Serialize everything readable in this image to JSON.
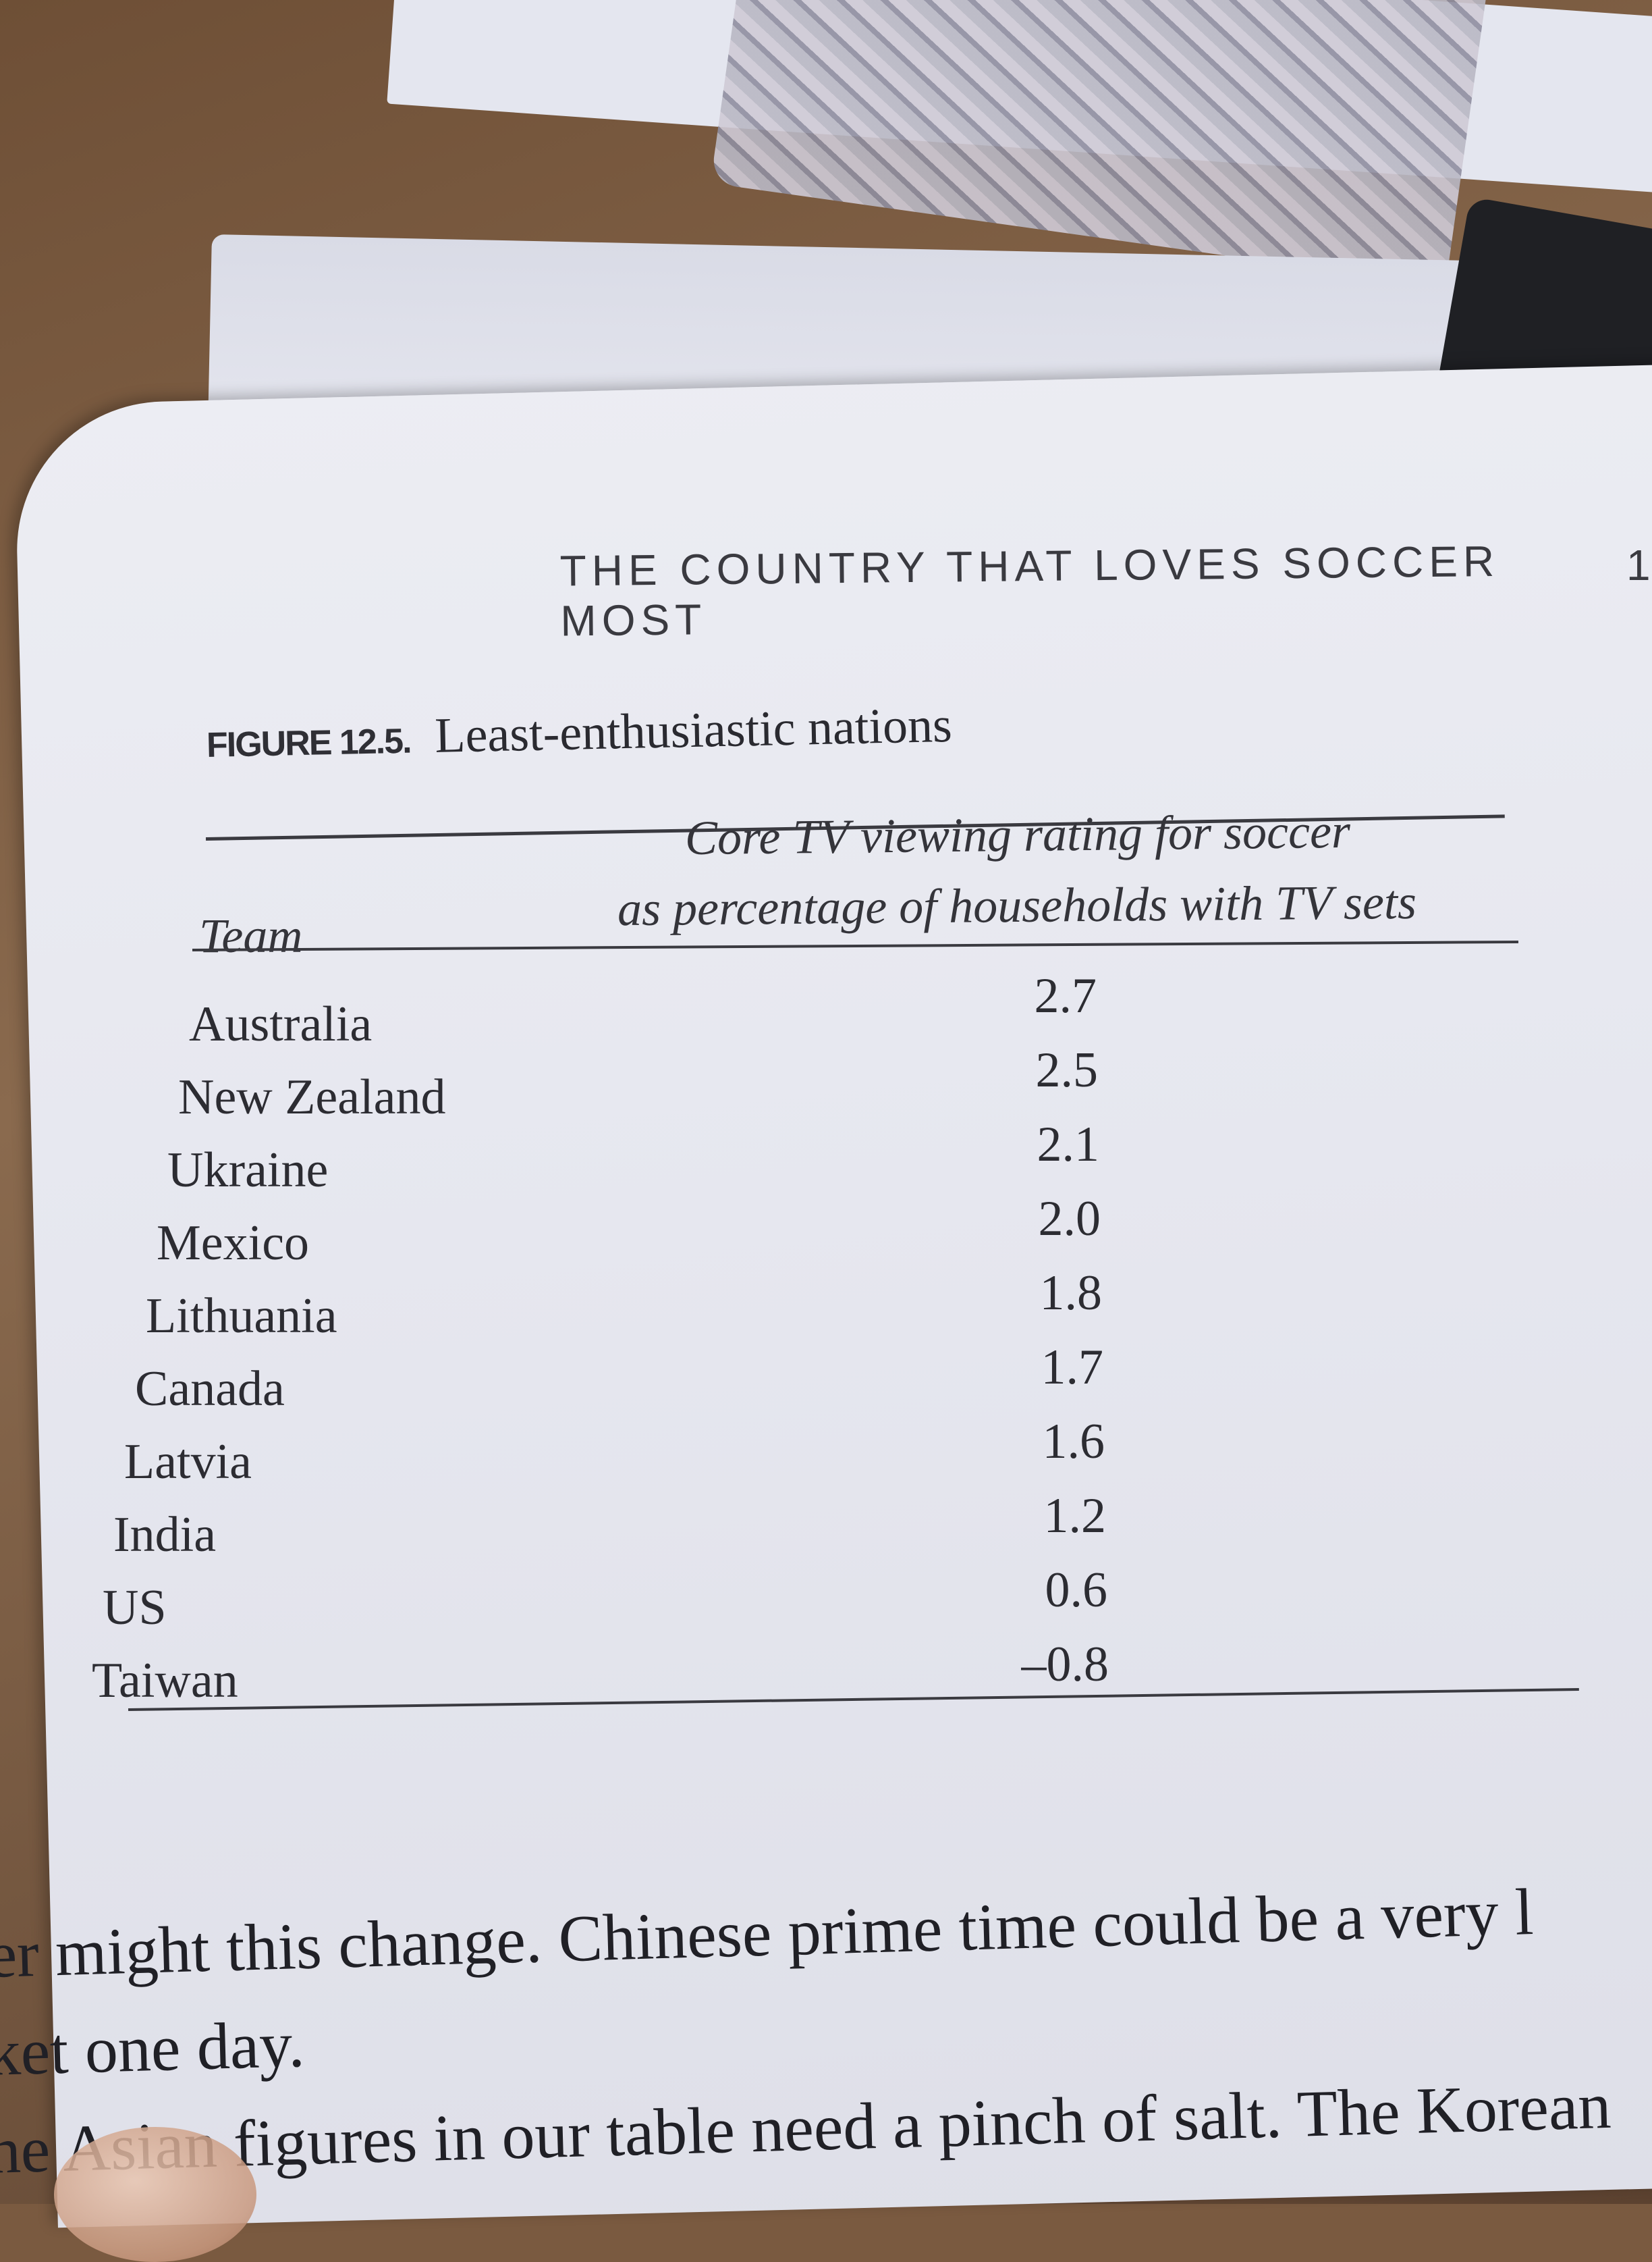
{
  "running_head": "THE COUNTRY THAT LOVES SOCCER MOST",
  "running_page_number": "1",
  "figure": {
    "label": "FIGURE 12.5.",
    "title": "Least-enthusiastic nations"
  },
  "table": {
    "col_team": "Team",
    "col_rating_line1": "Core TV viewing rating for soccer",
    "col_rating_line2": "as percentage of households with TV sets",
    "rows": [
      {
        "team": "Australia",
        "value": "2.7"
      },
      {
        "team": "New Zealand",
        "value": "2.5"
      },
      {
        "team": "Ukraine",
        "value": "2.1"
      },
      {
        "team": "Mexico",
        "value": "2.0"
      },
      {
        "team": "Lithuania",
        "value": "1.8"
      },
      {
        "team": "Canada",
        "value": "1.7"
      },
      {
        "team": "Latvia",
        "value": "1.6"
      },
      {
        "team": "India",
        "value": "1.2"
      },
      {
        "team": "US",
        "value": "0.6"
      },
      {
        "team": "Taiwan",
        "value": "–0.8"
      }
    ]
  },
  "body": {
    "line1": "er might this change. Chinese prime time could be a very l",
    "line2": "ket one day.",
    "line3": "he Asian figures in our table need a pinch of salt. The Korean"
  }
}
